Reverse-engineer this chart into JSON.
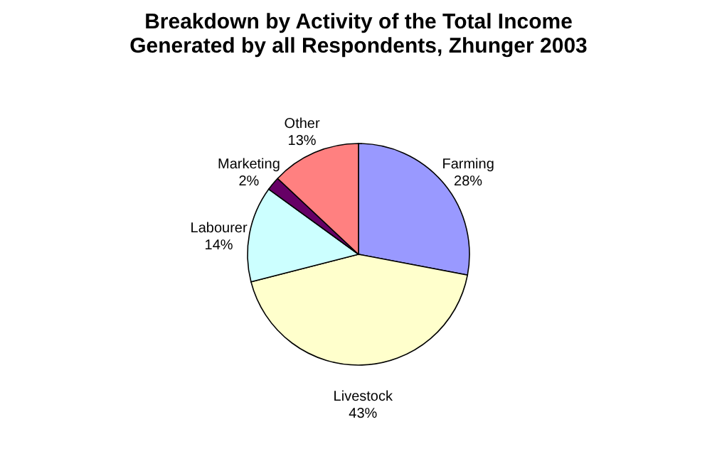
{
  "chart_data": {
    "type": "pie",
    "title": [
      "Breakdown by Activity of the Total Income",
      "Generated by all Respondents, Zhunger 2003"
    ],
    "categories": [
      "Farming",
      "Livestock",
      "Labourer",
      "Marketing",
      "Other"
    ],
    "values": [
      28,
      43,
      14,
      2,
      13
    ],
    "value_labels": [
      "28%",
      "43%",
      "14%",
      "2%",
      "13%"
    ],
    "colors": [
      "#9999ff",
      "#ffffcc",
      "#ccffff",
      "#660066",
      "#ff8080"
    ],
    "legend": false
  }
}
